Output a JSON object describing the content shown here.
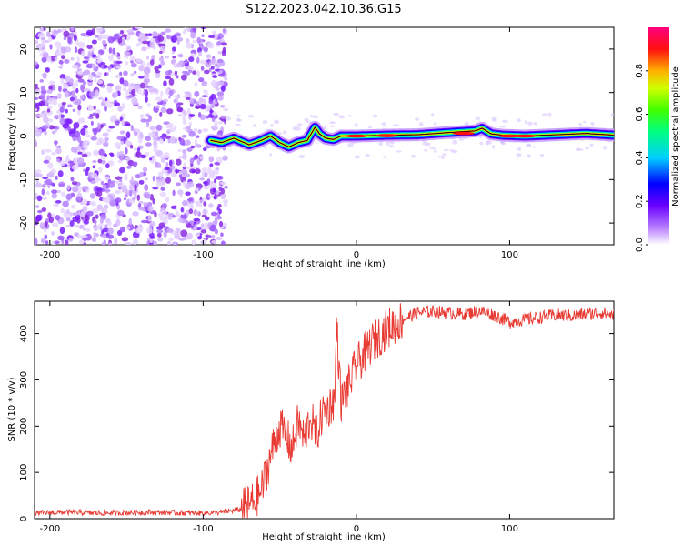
{
  "title": "S122.2023.042.10.36.G15",
  "colors": {
    "snr_line": "#e83a32",
    "spectrogram_ridge": "#00aa44",
    "scatter": "#8a2be2"
  },
  "chart_data": [
    {
      "type": "heatmap",
      "xlabel": "Height of straight line (km)",
      "ylabel": "Frequency (Hz)",
      "xlim": [
        -210,
        168
      ],
      "ylim": [
        -25,
        25
      ],
      "xticks": [
        -200,
        -100,
        0,
        100
      ],
      "yticks": [
        20,
        10,
        0,
        -10,
        -20
      ],
      "colorbar": {
        "label": "Normalized spectral amplitude",
        "range": [
          0,
          1
        ],
        "ticks": [
          "0.0",
          "0.2",
          "0.4",
          "0.6",
          "0.8"
        ],
        "tick_values": [
          0.0,
          0.2,
          0.4,
          0.6,
          0.8
        ]
      },
      "ridge": {
        "x": [
          -95,
          -88,
          -80,
          -70,
          -62,
          -56,
          -50,
          -44,
          -38,
          -32,
          -27,
          -24,
          -20,
          -15,
          -10,
          -5,
          0,
          20,
          40,
          60,
          78,
          82,
          88,
          95,
          110,
          130,
          150,
          168
        ],
        "y": [
          -1.0,
          -1.5,
          -0.5,
          -2.0,
          -1.0,
          0.0,
          -1.5,
          -2.5,
          -1.5,
          -1.0,
          2.0,
          0.5,
          -0.5,
          -0.8,
          0.0,
          0.0,
          0.0,
          0.2,
          0.3,
          0.8,
          1.2,
          1.8,
          0.5,
          0.2,
          0.0,
          0.3,
          0.6,
          0.2
        ]
      },
      "noise_region_x": [
        -210,
        -85
      ]
    },
    {
      "type": "line",
      "xlabel": "Height of straight line (km)",
      "ylabel": "SNR (10 * v/v)",
      "xlim": [
        -210,
        168
      ],
      "ylim": [
        0,
        470
      ],
      "xticks": [
        -200,
        -100,
        0,
        100
      ],
      "yticks": [
        0,
        100,
        200,
        300,
        400
      ],
      "series": [
        {
          "x": [
            -210,
            -190,
            -170,
            -150,
            -130,
            -110,
            -90,
            -75,
            -68,
            -62,
            -58,
            -54,
            -50,
            -46,
            -42,
            -38,
            -34,
            -30,
            -26,
            -22,
            -18,
            -14,
            -13,
            -10,
            -6,
            0,
            10,
            20,
            30,
            40,
            50,
            60,
            70,
            80,
            90,
            100,
            110,
            120,
            130,
            140,
            150,
            160,
            168
          ],
          "y": [
            12,
            14,
            12,
            13,
            14,
            12,
            13,
            20,
            35,
            60,
            110,
            160,
            200,
            180,
            150,
            210,
            170,
            220,
            180,
            230,
            240,
            260,
            430,
            250,
            280,
            330,
            380,
            410,
            430,
            445,
            448,
            445,
            442,
            450,
            440,
            425,
            430,
            435,
            440,
            438,
            442,
            445,
            440
          ]
        }
      ]
    }
  ]
}
